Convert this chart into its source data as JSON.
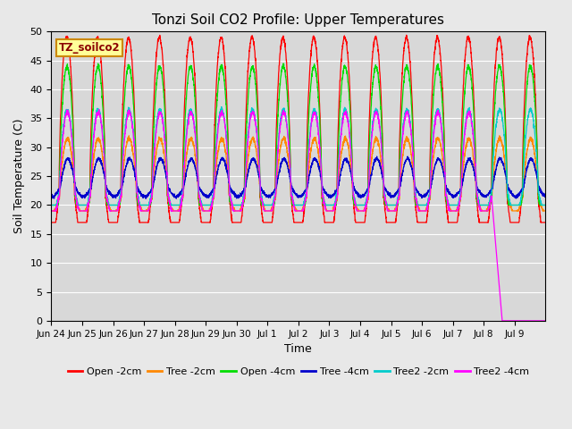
{
  "title": "Tonzi Soil CO2 Profile: Upper Temperatures",
  "xlabel": "Time",
  "ylabel": "Soil Temperature (C)",
  "ylim": [
    0,
    50
  ],
  "yticks": [
    0,
    5,
    10,
    15,
    20,
    25,
    30,
    35,
    40,
    45,
    50
  ],
  "background_color": "#e8e8e8",
  "plot_bg_color": "#d8d8d8",
  "legend_label": "TZ_soilco2",
  "legend_bg": "#ffff99",
  "legend_border": "#cc8800",
  "series": [
    {
      "label": "Open -2cm",
      "color": "#ff0000"
    },
    {
      "label": "Tree -2cm",
      "color": "#ff8800"
    },
    {
      "label": "Open -4cm",
      "color": "#00dd00"
    },
    {
      "label": "Tree -4cm",
      "color": "#0000cc"
    },
    {
      "label": "Tree2 -2cm",
      "color": "#00cccc"
    },
    {
      "label": "Tree2 -4cm",
      "color": "#ff00ff"
    }
  ],
  "x_tick_labels": [
    "Jun 24",
    "Jun 25",
    "Jun 26",
    "Jun 27",
    "Jun 28",
    "Jun 29",
    "Jun 30",
    "Jul 1",
    "Jul 2",
    "Jul 3",
    "Jul 4",
    "Jul 5",
    "Jul 6",
    "Jul 7",
    "Jul 8",
    "Jul 9"
  ],
  "n_days": 16,
  "samples_per_day": 240
}
